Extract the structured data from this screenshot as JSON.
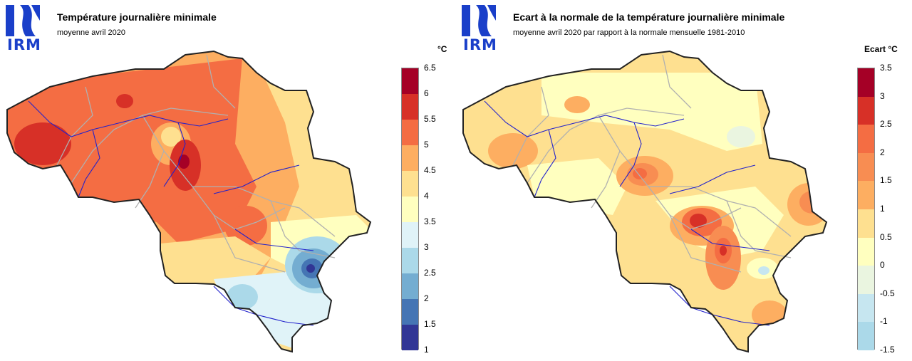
{
  "logo": {
    "text": "IRM",
    "color": "#1a3fc9"
  },
  "left_map": {
    "title": "Température journalière minimale",
    "subtitle": "moyenne avril 2020",
    "unit": "°C",
    "legend": {
      "ticks": [
        "6.5",
        "6",
        "5.5",
        "5",
        "4.5",
        "4",
        "3.5",
        "3",
        "2.5",
        "2",
        "1.5",
        "1"
      ],
      "colors": [
        "#a50026",
        "#d73027",
        "#f46d43",
        "#fdae61",
        "#fee090",
        "#ffffbf",
        "#e0f3f8",
        "#abd9e9",
        "#74add1",
        "#4575b4",
        "#313695"
      ]
    }
  },
  "right_map": {
    "title": "Ecart à la normale de la température journalière minimale",
    "subtitle": "moyenne avril 2020 par rapport à la normale mensuelle 1981-2010",
    "unit": "Ecart °C",
    "legend": {
      "ticks": [
        "3.5",
        "3",
        "2.5",
        "2",
        "1.5",
        "1",
        "0.5",
        "0",
        "-0.5",
        "-1",
        "-1.5"
      ],
      "colors": [
        "#a50026",
        "#d73027",
        "#f46d43",
        "#f88d52",
        "#fdae61",
        "#fee090",
        "#ffffbf",
        "#eaf5e0",
        "#c6e6f0",
        "#abd9e9"
      ]
    }
  }
}
